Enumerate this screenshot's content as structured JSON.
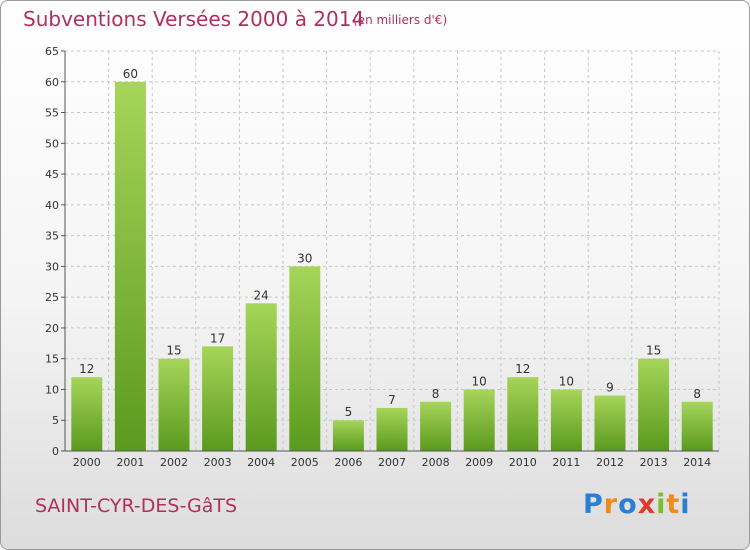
{
  "chart_data": {
    "type": "bar",
    "title": "Subventions Versées 2000 à 2014",
    "subtitle": "(en milliers d'€)",
    "categories": [
      "2000",
      "2001",
      "2002",
      "2003",
      "2004",
      "2005",
      "2006",
      "2007",
      "2008",
      "2009",
      "2010",
      "2011",
      "2012",
      "2013",
      "2014"
    ],
    "values": [
      12,
      60,
      15,
      17,
      24,
      30,
      5,
      7,
      8,
      10,
      12,
      10,
      9,
      15,
      8
    ],
    "ylim": [
      0,
      65
    ],
    "yticks": [
      0,
      5,
      10,
      15,
      20,
      25,
      30,
      35,
      40,
      45,
      50,
      55,
      60,
      65
    ],
    "grid": true,
    "bar_color": "#7dc03a",
    "bar_color_light": "#a6d55a",
    "bar_color_dark": "#5a9a1e"
  },
  "location": "SAINT-CYR-DES-GâTS",
  "brand": {
    "letters": [
      "P",
      "r",
      "o",
      "x",
      "i",
      "t",
      "i"
    ],
    "colors": [
      "#2a7fd4",
      "#f08a1a",
      "#2a7fd4",
      "#e23a2a",
      "#7dbf2a",
      "#f08a1a",
      "#2a7fd4"
    ]
  },
  "colors": {
    "title": "#b0305a",
    "grid": "#c8c8c8",
    "axis": "#555555"
  }
}
